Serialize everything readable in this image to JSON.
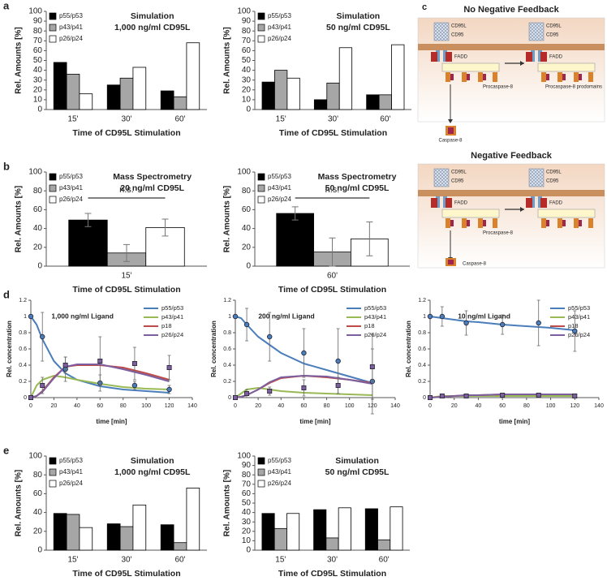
{
  "panels": [
    "a",
    "b",
    "d",
    "e"
  ],
  "chart_data": [
    {
      "type": "bar",
      "title": "Simulation",
      "subtitle": "1,000 ng/ml CD95L",
      "x_label": "Time of CD95L Stimulation",
      "y_label": "Rel. Amounts [%]",
      "categories": [
        "15'",
        "30'",
        "60'"
      ],
      "series": [
        {
          "name": "p55/p53",
          "color": "#000000",
          "values": [
            48,
            25,
            19
          ]
        },
        {
          "name": "p43/p41",
          "color": "#a6a6a6",
          "values": [
            36,
            32,
            13
          ]
        },
        {
          "name": "p26/p24",
          "color": "#ffffff",
          "values": [
            16,
            43,
            68
          ]
        }
      ],
      "ylim": [
        0,
        100
      ],
      "yticks": [
        0,
        10,
        20,
        30,
        40,
        50,
        60,
        70,
        80,
        90,
        100
      ],
      "legend": "upper left"
    },
    {
      "type": "bar",
      "title": "Simulation",
      "subtitle": "50 ng/ml CD95L",
      "x_label": "Time of CD95L Stimulation",
      "y_label": "Rel. Amounts [%]",
      "categories": [
        "15'",
        "30'",
        "60'"
      ],
      "series": [
        {
          "name": "p55/p53",
          "color": "#000000",
          "values": [
            28,
            10,
            15
          ]
        },
        {
          "name": "p43/p41",
          "color": "#a6a6a6",
          "values": [
            40,
            27,
            15
          ]
        },
        {
          "name": "p26/p24",
          "color": "#ffffff",
          "values": [
            32,
            63,
            66
          ]
        }
      ],
      "ylim": [
        0,
        100
      ],
      "yticks": [
        0,
        10,
        20,
        30,
        40,
        50,
        60,
        70,
        80,
        90,
        100
      ],
      "legend": "upper left"
    },
    {
      "type": "bar",
      "title": "Mass Spectrometry",
      "subtitle": "20 ng/ml CD95L",
      "annotation": "n.s.",
      "x_label": "Time of CD95L Stimulation",
      "y_label": "Rel. Amounts [%]",
      "categories": [
        "15'"
      ],
      "series": [
        {
          "name": "p55/p53",
          "color": "#000000",
          "values": [
            49
          ],
          "errors": [
            7
          ]
        },
        {
          "name": "p43/p41",
          "color": "#a6a6a6",
          "values": [
            14
          ],
          "errors": [
            9
          ]
        },
        {
          "name": "p26/p24",
          "color": "#ffffff",
          "values": [
            41
          ],
          "errors": [
            9
          ]
        }
      ],
      "ylim": [
        0,
        100
      ],
      "yticks": [
        0,
        20,
        40,
        60,
        80,
        100
      ],
      "legend": "upper left"
    },
    {
      "type": "bar",
      "title": "Mass Spectrometry",
      "subtitle": "50 ng/ml CD95L",
      "annotation": "n.s.",
      "x_label": "Time of CD95L Stimulation",
      "y_label": "Rel. Amounts [%]",
      "categories": [
        "60'"
      ],
      "series": [
        {
          "name": "p55/p53",
          "color": "#000000",
          "values": [
            56
          ],
          "errors": [
            7
          ]
        },
        {
          "name": "p43/p41",
          "color": "#a6a6a6",
          "values": [
            15
          ],
          "errors": [
            15
          ]
        },
        {
          "name": "p26/p24",
          "color": "#ffffff",
          "values": [
            29
          ],
          "errors": [
            18
          ]
        }
      ],
      "ylim": [
        0,
        100
      ],
      "yticks": [
        0,
        20,
        40,
        60,
        80,
        100
      ],
      "legend": "upper left"
    },
    {
      "type": "line",
      "title": "1,000 ng/ml Ligand",
      "x_label": "time [min]",
      "y_label": "Rel. concentration",
      "x": [
        0,
        5,
        10,
        20,
        30,
        40,
        60,
        80,
        100,
        120
      ],
      "series": [
        {
          "name": "p55/p53",
          "color": "#4a7ebb",
          "values": [
            1,
            0.9,
            0.72,
            0.45,
            0.3,
            0.22,
            0.14,
            0.1,
            0.08,
            0.06
          ]
        },
        {
          "name": "p43/p41",
          "color": "#98b954",
          "values": [
            0,
            0.15,
            0.22,
            0.27,
            0.25,
            0.22,
            0.17,
            0.13,
            0.11,
            0.1
          ]
        },
        {
          "name": "p18",
          "color": "#be4b48",
          "values": [
            0,
            0.02,
            0.08,
            0.25,
            0.38,
            0.4,
            0.4,
            0.37,
            0.3,
            0.22
          ]
        },
        {
          "name": "p26/p24",
          "color": "#7d5fa0",
          "values": [
            0,
            0.02,
            0.07,
            0.24,
            0.38,
            0.41,
            0.41,
            0.35,
            0.28,
            0.2
          ]
        }
      ],
      "measurements": {
        "x": [
          0,
          10,
          30,
          60,
          90,
          120
        ],
        "series": [
          {
            "color": "#4a7ebb",
            "marker": "circle",
            "values": [
              1,
              0.75,
              0.35,
              0.18,
              0.15,
              0.1
            ],
            "errors": [
              0,
              0.3,
              0.15,
              0.1,
              0.05,
              0.05
            ]
          },
          {
            "color": "#7d5fa0",
            "marker": "square",
            "values": [
              0,
              0.15,
              0.4,
              0.45,
              0.42,
              0.37
            ],
            "errors": [
              0,
              0.1,
              0.1,
              0.3,
              0.2,
              0.15
            ]
          }
        ]
      },
      "xlim": [
        0,
        140
      ],
      "xticks": [
        0,
        20,
        40,
        60,
        80,
        100,
        120,
        140
      ],
      "ylim": [
        0,
        1.2
      ],
      "yticks": [
        0,
        0.2,
        0.4,
        0.6,
        0.8,
        1,
        1.2
      ],
      "legend": "upper right"
    },
    {
      "type": "line",
      "title": "200 ng/ml Ligand",
      "x_label": "time [min]",
      "y_label": "Rel. concentration",
      "x": [
        0,
        5,
        10,
        20,
        30,
        40,
        60,
        80,
        100,
        120
      ],
      "series": [
        {
          "name": "p55/p53",
          "color": "#4a7ebb",
          "values": [
            1,
            0.98,
            0.9,
            0.75,
            0.65,
            0.55,
            0.42,
            0.34,
            0.26,
            0.18
          ]
        },
        {
          "name": "p43/p41",
          "color": "#98b954",
          "values": [
            0,
            0.05,
            0.1,
            0.12,
            0.1,
            0.08,
            0.06,
            0.05,
            0.04,
            0.03
          ]
        },
        {
          "name": "p18",
          "color": "#be4b48",
          "values": [
            0,
            0.01,
            0.03,
            0.1,
            0.18,
            0.24,
            0.27,
            0.25,
            0.22,
            0.18
          ]
        },
        {
          "name": "p26/p24",
          "color": "#7d5fa0",
          "values": [
            0,
            0.01,
            0.03,
            0.1,
            0.19,
            0.25,
            0.27,
            0.26,
            0.22,
            0.17
          ]
        }
      ],
      "measurements": {
        "x": [
          0,
          10,
          30,
          60,
          90,
          120
        ],
        "series": [
          {
            "color": "#4a7ebb",
            "marker": "circle",
            "values": [
              1,
              0.9,
              0.75,
              0.55,
              0.45,
              0.2
            ],
            "errors": [
              0,
              0.2,
              0.3,
              0.3,
              0.4,
              0.4
            ]
          },
          {
            "color": "#7d5fa0",
            "marker": "square",
            "values": [
              0,
              0.05,
              0.08,
              0.12,
              0.15,
              0.38
            ],
            "errors": [
              0,
              0.05,
              0.05,
              0.1,
              0.1,
              0.4
            ]
          }
        ]
      },
      "xlim": [
        0,
        140
      ],
      "xticks": [
        0,
        20,
        40,
        60,
        80,
        100,
        120,
        140
      ],
      "ylim": [
        0,
        1.2
      ],
      "yticks": [
        0,
        0.2,
        0.4,
        0.6,
        0.8,
        1,
        1.2
      ],
      "legend": "upper right"
    },
    {
      "type": "line",
      "title": "10 ng/ml Ligand",
      "x_label": "time [min]",
      "y_label": "Rel. concentration",
      "x": [
        0,
        5,
        10,
        20,
        30,
        40,
        60,
        80,
        100,
        120
      ],
      "series": [
        {
          "name": "p55/p53",
          "color": "#4a7ebb",
          "values": [
            1,
            0.99,
            0.98,
            0.96,
            0.94,
            0.93,
            0.9,
            0.88,
            0.86,
            0.83
          ]
        },
        {
          "name": "p43/p41",
          "color": "#98b954",
          "values": [
            0,
            0.01,
            0.02,
            0.02,
            0.02,
            0.02,
            0.02,
            0.02,
            0.02,
            0.02
          ]
        },
        {
          "name": "p18",
          "color": "#be4b48",
          "values": [
            0,
            0.005,
            0.01,
            0.02,
            0.03,
            0.03,
            0.04,
            0.04,
            0.04,
            0.04
          ]
        },
        {
          "name": "p26/p24",
          "color": "#7d5fa0",
          "values": [
            0,
            0.005,
            0.01,
            0.02,
            0.03,
            0.03,
            0.04,
            0.04,
            0.04,
            0.04
          ]
        }
      ],
      "measurements": {
        "x": [
          0,
          10,
          30,
          60,
          90,
          120
        ],
        "series": [
          {
            "color": "#4a7ebb",
            "marker": "circle",
            "values": [
              1,
              1,
              0.92,
              0.9,
              0.92,
              0.82
            ],
            "errors": [
              0.02,
              0.12,
              0.15,
              0.12,
              0.28,
              0.25
            ]
          },
          {
            "color": "#7d5fa0",
            "marker": "square",
            "values": [
              0,
              0.02,
              0.02,
              0.03,
              0.03,
              0.02
            ],
            "errors": [
              0,
              0.01,
              0.01,
              0.01,
              0.01,
              0.01
            ]
          }
        ]
      },
      "xlim": [
        0,
        140
      ],
      "xticks": [
        0,
        20,
        40,
        60,
        80,
        100,
        120,
        140
      ],
      "ylim": [
        0,
        1.2
      ],
      "yticks": [
        0,
        0.2,
        0.4,
        0.6,
        0.8,
        1,
        1.2
      ],
      "legend": "upper right"
    },
    {
      "type": "bar",
      "title": "Simulation",
      "subtitle": "1,000 ng/ml CD95L",
      "x_label": "Time of CD95L Stimulation",
      "y_label": "Rel. Amounts [%]",
      "categories": [
        "15'",
        "30'",
        "60'"
      ],
      "series": [
        {
          "name": "p55/p53",
          "color": "#000000",
          "values": [
            39,
            28,
            27
          ]
        },
        {
          "name": "p43/p41",
          "color": "#a6a6a6",
          "values": [
            38,
            25,
            8
          ]
        },
        {
          "name": "p26/p24",
          "color": "#ffffff",
          "values": [
            24,
            48,
            66
          ]
        }
      ],
      "ylim": [
        0,
        100
      ],
      "yticks": [
        0,
        20,
        40,
        60,
        80,
        100
      ],
      "legend": "upper left"
    },
    {
      "type": "bar",
      "title": "Simulation",
      "subtitle": "50 ng/ml CD95L",
      "x_label": "Time of CD95L Stimulation",
      "y_label": "Rel. Amounts [%]",
      "categories": [
        "15'",
        "30'",
        "60'"
      ],
      "series": [
        {
          "name": "p55/p53",
          "color": "#000000",
          "values": [
            39,
            43,
            44
          ]
        },
        {
          "name": "p43/p41",
          "color": "#a6a6a6",
          "values": [
            23,
            13,
            11
          ]
        },
        {
          "name": "p26/p24",
          "color": "#ffffff",
          "values": [
            39,
            45,
            46
          ]
        }
      ],
      "ylim": [
        0,
        100
      ],
      "yticks": [
        0,
        10,
        20,
        30,
        40,
        50,
        60,
        70,
        80,
        90,
        100
      ],
      "legend": "upper left"
    }
  ],
  "diagram": {
    "panel": "c",
    "sections": [
      {
        "title": "No Negative Feedback",
        "labels": [
          "CD95L",
          "CD95",
          "CD95L",
          "CD95",
          "FADD",
          "FADD",
          "Procaspase-8",
          "Procaspase-8 prodomains",
          "Caspase-8"
        ]
      },
      {
        "title": "Negative Feedback",
        "labels": [
          "CD95L",
          "CD95",
          "CD95L",
          "CD95",
          "FADD",
          "FADD",
          "Procaspase-8",
          "Caspase-8"
        ]
      }
    ]
  }
}
